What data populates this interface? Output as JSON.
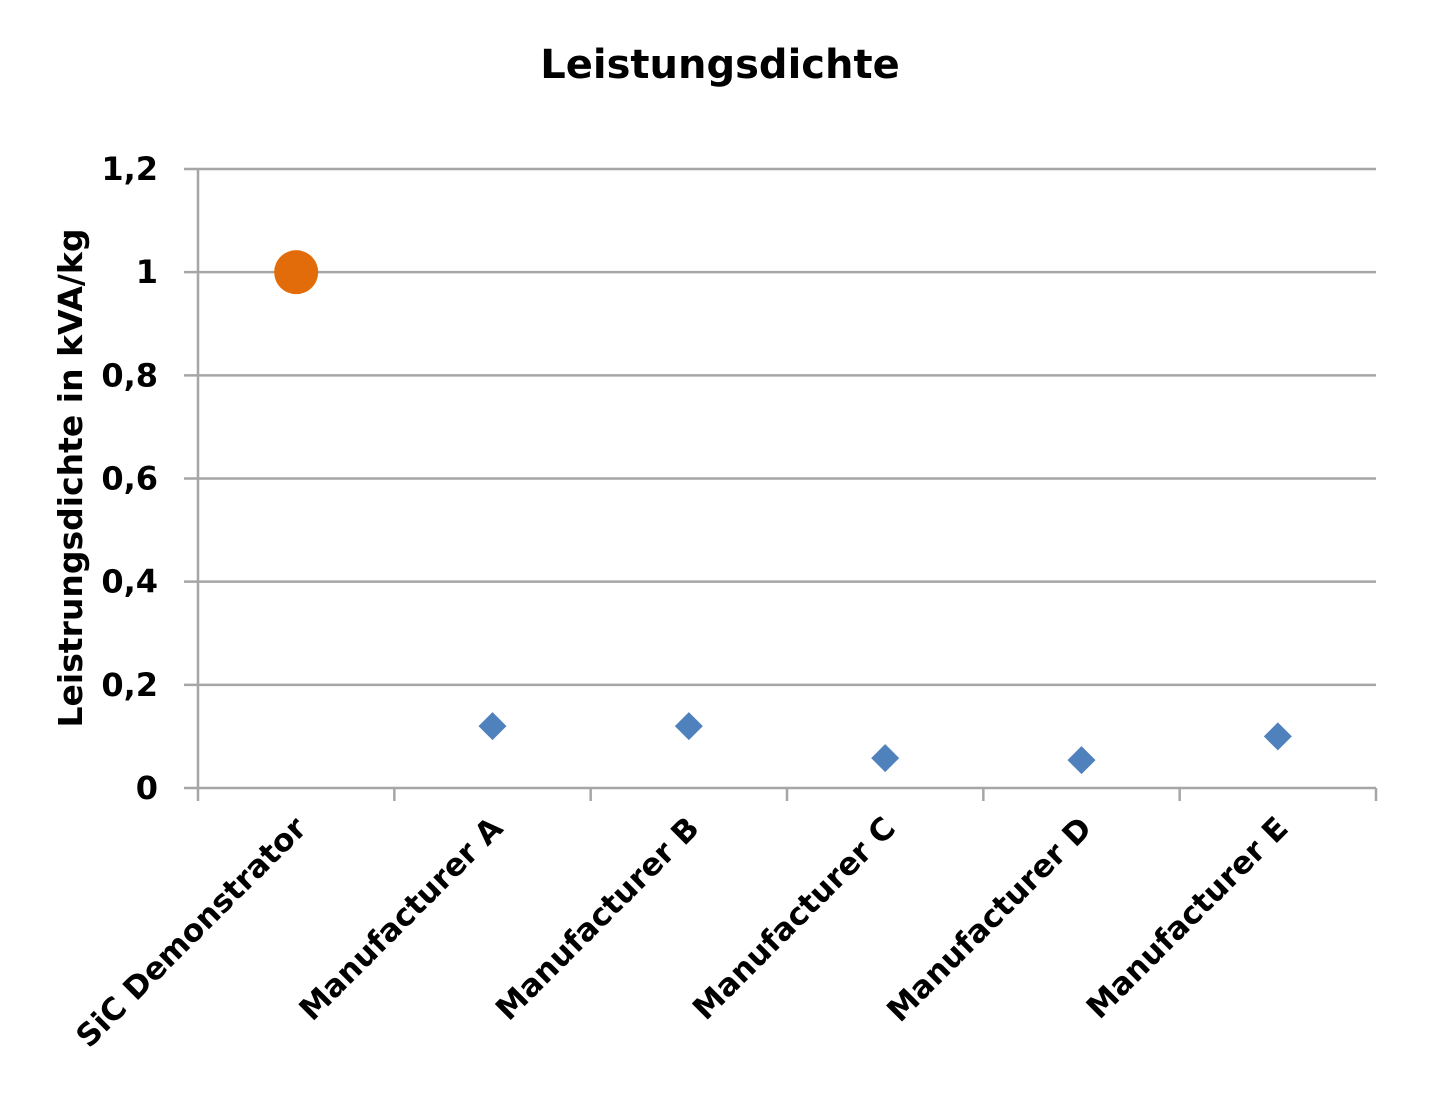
{
  "chart_data": {
    "type": "scatter",
    "title": "Leistungsdichte",
    "ylabel": "Leistrungsdichte in kVA/kg",
    "xlabel": "",
    "categories": [
      "SiC Demonstrator",
      "Manufacturer A",
      "Manufacturer B",
      "Manufacturer C",
      "Manufacturer D",
      "Manufacturer E"
    ],
    "ylim": [
      0,
      1.2
    ],
    "yticks": [
      0,
      0.2,
      0.4,
      0.6,
      0.8,
      1,
      1.2
    ],
    "ytick_labels": [
      "0",
      "0,2",
      "0,4",
      "0,6",
      "0,8",
      "1",
      "1,2"
    ],
    "grid": true,
    "legend": "none",
    "points": [
      {
        "category": "SiC Demonstrator",
        "value": 1.0,
        "marker": "circle",
        "color": "#e36c0a"
      },
      {
        "category": "Manufacturer A",
        "value": 0.12,
        "marker": "diamond",
        "color": "#4f81bd"
      },
      {
        "category": "Manufacturer B",
        "value": 0.12,
        "marker": "diamond",
        "color": "#4f81bd"
      },
      {
        "category": "Manufacturer C",
        "value": 0.058,
        "marker": "diamond",
        "color": "#4f81bd"
      },
      {
        "category": "Manufacturer D",
        "value": 0.054,
        "marker": "diamond",
        "color": "#4f81bd"
      },
      {
        "category": "Manufacturer E",
        "value": 0.1,
        "marker": "diamond",
        "color": "#4f81bd"
      }
    ]
  }
}
